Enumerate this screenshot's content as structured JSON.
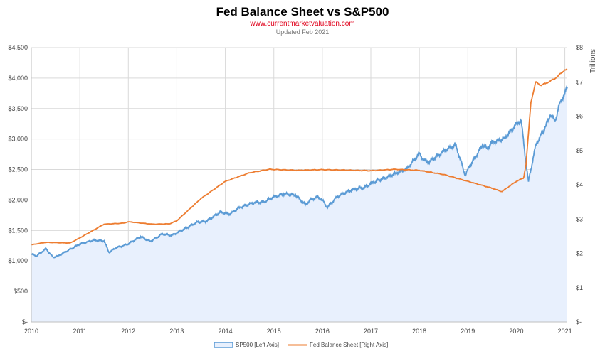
{
  "chart_data": {
    "type": "line",
    "title": "Fed Balance Sheet vs S&P500",
    "subtitle": "www.currentmarketvaluation.com",
    "updated": "Updated Feb 2021",
    "x_ticks": [
      "2010",
      "2011",
      "2012",
      "2013",
      "2014",
      "2015",
      "2016",
      "2017",
      "2018",
      "2019",
      "2020",
      "2021"
    ],
    "xlim": [
      2010,
      2021.05
    ],
    "y_left": {
      "ticks": [
        "$-",
        "$500",
        "$1,000",
        "$1,500",
        "$2,000",
        "$2,500",
        "$3,000",
        "$3,500",
        "$4,000",
        "$4,500"
      ],
      "range": [
        0,
        4500
      ]
    },
    "y_right": {
      "ticks": [
        "$-",
        "$1",
        "$2",
        "$3",
        "$4",
        "$5",
        "$6",
        "$7",
        "$8"
      ],
      "range": [
        0,
        8
      ],
      "label": "Trillions"
    },
    "series": [
      {
        "name": "SP500 [Left Axis]",
        "axis": "left",
        "color": "#5b9bd5",
        "fill": "#e8f0fd",
        "x": [
          2010.0,
          2010.1,
          2010.3,
          2010.45,
          2010.55,
          2010.7,
          2010.9,
          2011.0,
          2011.3,
          2011.5,
          2011.6,
          2011.75,
          2011.9,
          2012.0,
          2012.25,
          2012.45,
          2012.7,
          2012.9,
          2013.0,
          2013.4,
          2013.6,
          2013.9,
          2014.1,
          2014.3,
          2014.6,
          2014.8,
          2015.0,
          2015.2,
          2015.45,
          2015.65,
          2015.75,
          2015.9,
          2016.0,
          2016.1,
          2016.3,
          2016.6,
          2016.85,
          2017.0,
          2017.5,
          2017.75,
          2018.0,
          2018.1,
          2018.2,
          2018.5,
          2018.75,
          2018.95,
          2019.0,
          2019.3,
          2019.4,
          2019.5,
          2019.75,
          2020.0,
          2020.1,
          2020.2,
          2020.25,
          2020.4,
          2020.6,
          2020.7,
          2020.8,
          2020.9,
          2021.0,
          2021.05
        ],
        "y": [
          1115,
          1080,
          1200,
          1060,
          1080,
          1150,
          1230,
          1280,
          1340,
          1330,
          1140,
          1220,
          1250,
          1280,
          1400,
          1320,
          1440,
          1420,
          1460,
          1630,
          1650,
          1800,
          1770,
          1880,
          1960,
          1970,
          2050,
          2100,
          2080,
          1920,
          2000,
          2050,
          2000,
          1880,
          2050,
          2170,
          2200,
          2270,
          2430,
          2520,
          2760,
          2650,
          2620,
          2800,
          2900,
          2400,
          2500,
          2900,
          2840,
          2950,
          3000,
          3250,
          3300,
          2600,
          2300,
          2900,
          3200,
          3400,
          3300,
          3600,
          3750,
          3850
        ]
      },
      {
        "name": "Fed Balance Sheet [Right Axis]",
        "axis": "right",
        "color": "#ed7d31",
        "x": [
          2010.0,
          2010.3,
          2010.8,
          2011.0,
          2011.5,
          2011.9,
          2012.0,
          2012.5,
          2012.85,
          2013.0,
          2013.5,
          2014.0,
          2014.5,
          2014.9,
          2015.5,
          2016.0,
          2017.0,
          2017.5,
          2018.0,
          2018.5,
          2019.0,
          2019.5,
          2019.7,
          2019.85,
          2020.0,
          2020.15,
          2020.2,
          2020.3,
          2020.4,
          2020.5,
          2020.6,
          2020.8,
          2021.0,
          2021.05
        ],
        "y": [
          2.25,
          2.32,
          2.3,
          2.45,
          2.85,
          2.88,
          2.92,
          2.85,
          2.86,
          2.95,
          3.6,
          4.1,
          4.35,
          4.45,
          4.42,
          4.44,
          4.41,
          4.45,
          4.42,
          4.3,
          4.1,
          3.9,
          3.8,
          3.95,
          4.1,
          4.2,
          4.6,
          6.4,
          7.0,
          6.9,
          6.95,
          7.1,
          7.35,
          7.35
        ]
      }
    ]
  }
}
